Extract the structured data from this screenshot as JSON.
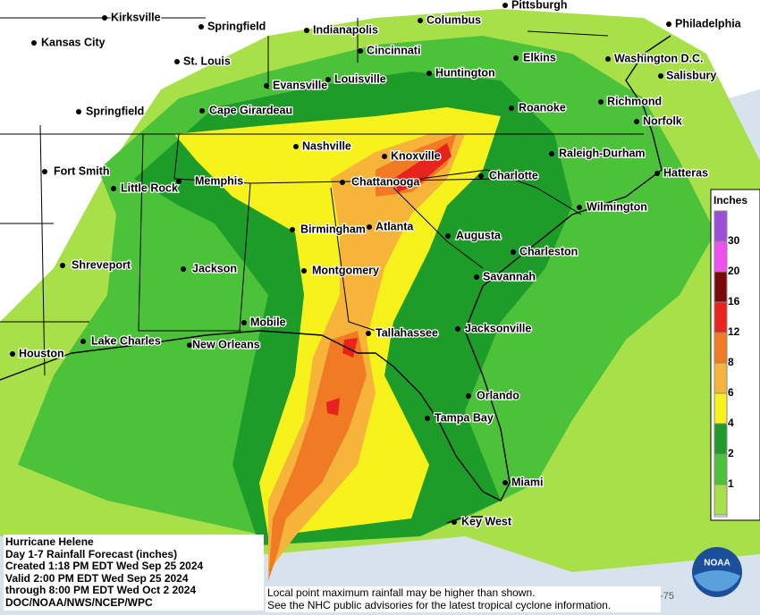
{
  "cities": [
    "Kirksville",
    "Springfield",
    "Indianapolis",
    "Columbus",
    "Pittsburgh",
    "Philadelphia",
    "Kansas City",
    "St. Louis",
    "Cincinnati",
    "Huntington",
    "Elkins",
    "Washington D.C.",
    "Salisbury",
    "Springfield",
    "Cape Girardeau",
    "Evansville",
    "Louisville",
    "Roanoke",
    "Richmond",
    "Norfolk",
    "Nashville",
    "Knoxville",
    "Raleigh-Durham",
    "Fort Smith",
    "Little Rock",
    "Memphis",
    "Chattanooga",
    "Charlotte",
    "Hatteras",
    "Wilmington",
    "Birmingham",
    "Atlanta",
    "Augusta",
    "Charleston",
    "Shreveport",
    "Jackson",
    "Montgomery",
    "Savannah",
    "Mobile",
    "Lake Charles",
    "New Orleans",
    "Tallahassee",
    "Jacksonville",
    "Houston",
    "Orlando",
    "Tampa Bay",
    "Miami",
    "Key West"
  ],
  "legend": {
    "title": "Inches",
    "top_color": "#9b4fd6",
    "levels": [
      {
        "value": 30,
        "color": "#f050f0"
      },
      {
        "value": 20,
        "color": "#7a0a0a"
      },
      {
        "value": 16,
        "color": "#e8221c"
      },
      {
        "value": 12,
        "color": "#f07b24"
      },
      {
        "value": 8,
        "color": "#f6b43a"
      },
      {
        "value": 6,
        "color": "#f7f21c"
      },
      {
        "value": 4,
        "color": "#1e9c2a"
      },
      {
        "value": 2,
        "color": "#4cc23a"
      },
      {
        "value": 1,
        "color": "#a8e04a"
      }
    ],
    "bottom_color": "#ffffff"
  },
  "info": [
    "Hurricane Helene",
    "Day 1-7 Rainfall Forecast (inches)",
    "Created 1:18 PM EDT Wed Sep 25 2024",
    "Valid 2:00 PM EDT Wed Sep 25 2024",
    "through 8:00 PM EDT Wed Oct 2 2024",
    "DOC/NOAA/NWS/NCEP/WPC"
  ],
  "footnote": [
    "Local point maximum rainfall may be higher than shown.",
    "See the NHC public advisories for the latest tropical cyclone information."
  ],
  "longitude_label": "-75",
  "logo": "NOAA"
}
